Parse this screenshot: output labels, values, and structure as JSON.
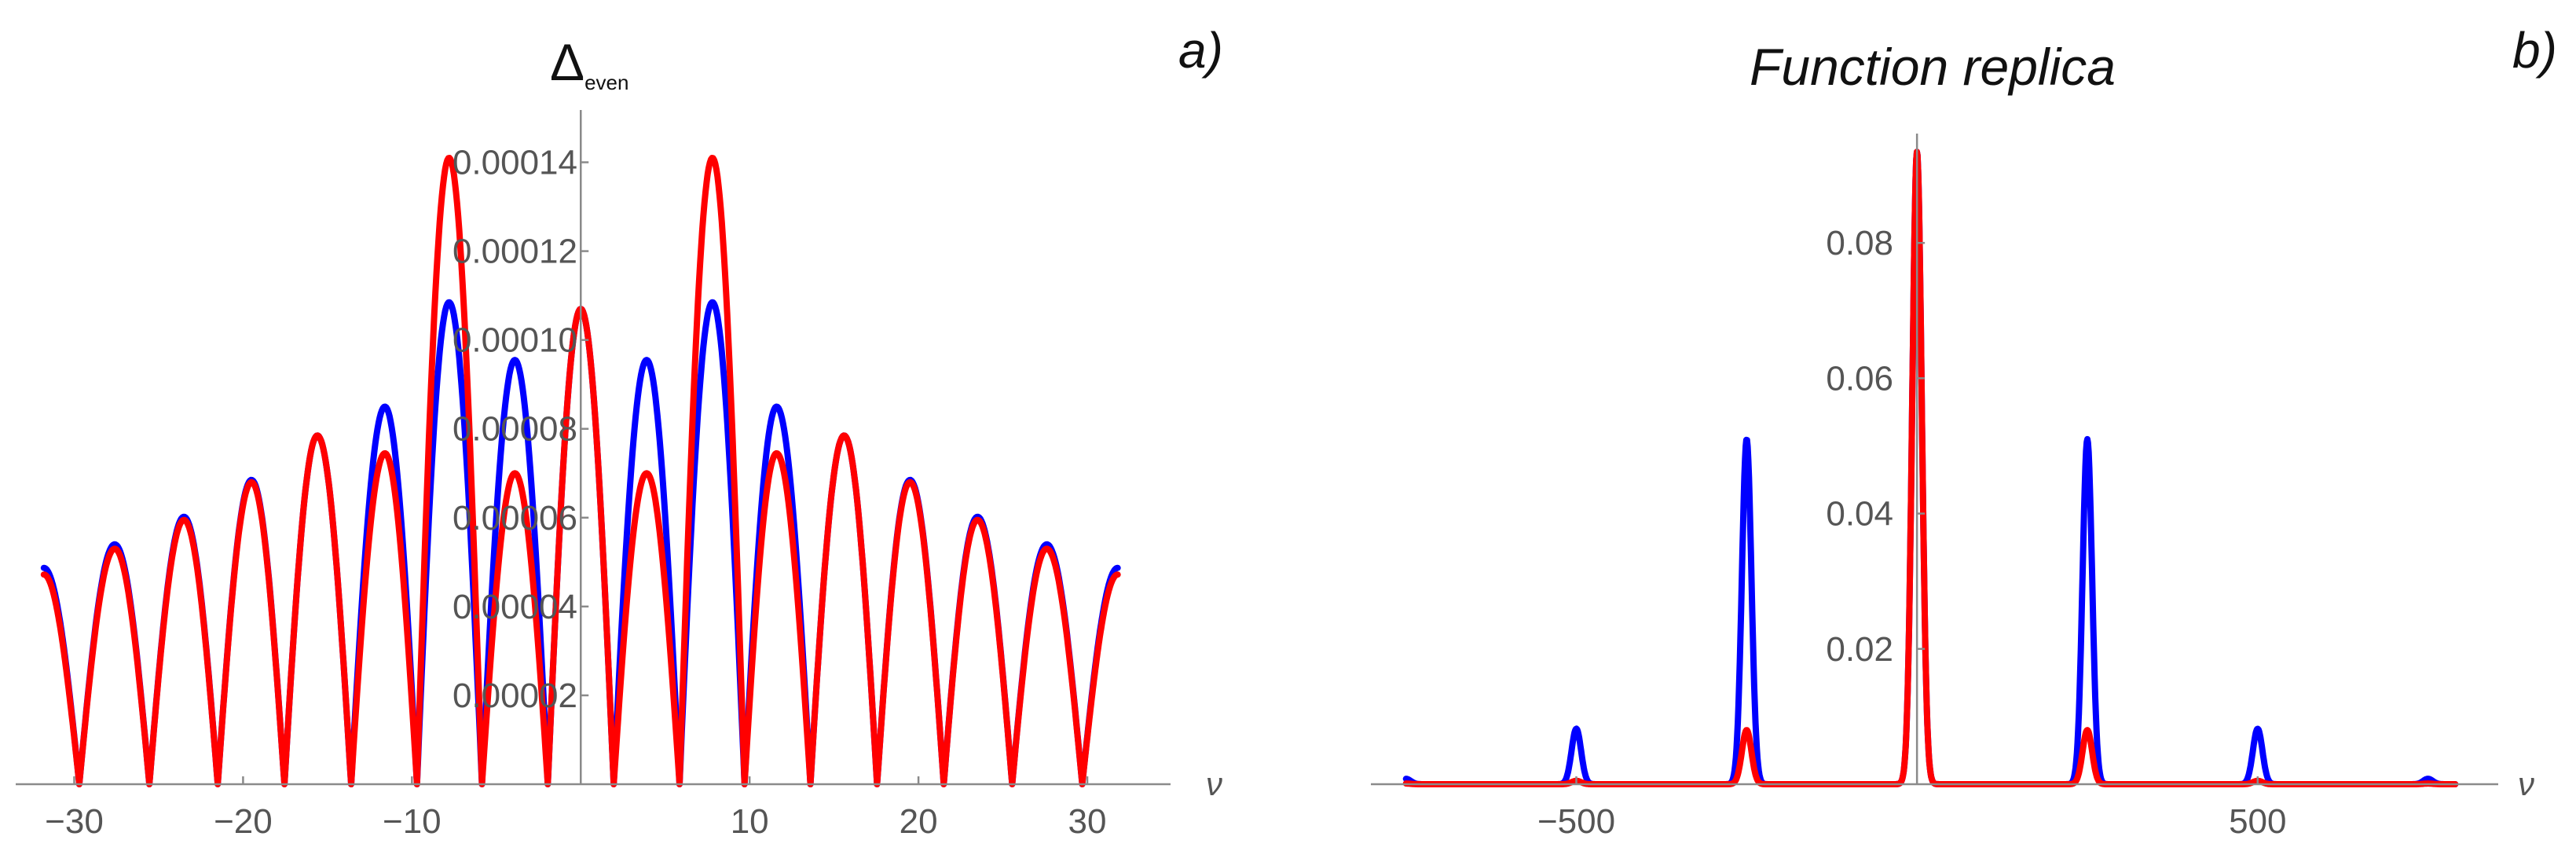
{
  "chart_data": [
    {
      "type": "line",
      "panel_label": "a)",
      "title": "Δeven",
      "title_main": "Δ",
      "title_sub": "even",
      "xlabel": "ν",
      "ylabel": "",
      "xlim": [
        -33,
        34
      ],
      "ylim": [
        0,
        0.00015
      ],
      "xticks": [
        -30,
        -20,
        -10,
        10,
        20,
        30
      ],
      "xtick_labels": [
        "−30",
        "−20",
        "−10",
        "10",
        "20",
        "30"
      ],
      "yticks": [
        2e-05,
        4e-05,
        6e-05,
        8e-05,
        0.0001,
        0.00012,
        0.00014
      ],
      "ytick_labels": [
        "0.00002",
        "0.00004",
        "0.00006",
        "0.00008",
        "0.00010",
        "0.00012",
        "0.00014"
      ],
      "grid": false,
      "series": [
        {
          "color": "#0000ff",
          "peaks": [
            {
              "x": -31.8,
              "y": 4.87e-05
            },
            {
              "x": -27.6,
              "y": 5.4e-05
            },
            {
              "x": -23.5,
              "y": 6.02e-05
            },
            {
              "x": -19.5,
              "y": 6.85e-05
            },
            {
              "x": -15.6,
              "y": 7.85e-05
            },
            {
              "x": -11.6,
              "y": 8.5e-05
            },
            {
              "x": -7.8,
              "y": 0.0001085
            },
            {
              "x": -3.9,
              "y": 9.55e-05
            },
            {
              "x": 0,
              "y": 0.000107
            },
            {
              "x": 3.9,
              "y": 9.55e-05
            },
            {
              "x": 7.8,
              "y": 0.0001085
            },
            {
              "x": 11.6,
              "y": 8.5e-05
            },
            {
              "x": 15.6,
              "y": 7.85e-05
            },
            {
              "x": 19.5,
              "y": 6.85e-05
            },
            {
              "x": 23.5,
              "y": 6.02e-05
            },
            {
              "x": 27.6,
              "y": 5.4e-05
            },
            {
              "x": 31.8,
              "y": 4.87e-05
            }
          ]
        },
        {
          "color": "#ff0000",
          "peaks": [
            {
              "x": -31.8,
              "y": 4.72e-05
            },
            {
              "x": -27.6,
              "y": 5.3e-05
            },
            {
              "x": -23.5,
              "y": 5.95e-05
            },
            {
              "x": -19.5,
              "y": 6.8e-05
            },
            {
              "x": -15.6,
              "y": 7.85e-05
            },
            {
              "x": -11.6,
              "y": 7.45e-05
            },
            {
              "x": -7.8,
              "y": 0.000141
            },
            {
              "x": -3.9,
              "y": 7e-05
            },
            {
              "x": 0,
              "y": 0.000107
            },
            {
              "x": 3.9,
              "y": 7e-05
            },
            {
              "x": 7.8,
              "y": 0.000141
            },
            {
              "x": 11.6,
              "y": 7.45e-05
            },
            {
              "x": 15.6,
              "y": 7.85e-05
            },
            {
              "x": 19.5,
              "y": 6.8e-05
            },
            {
              "x": 23.5,
              "y": 5.95e-05
            },
            {
              "x": 27.6,
              "y": 5.3e-05
            },
            {
              "x": 31.8,
              "y": 4.72e-05
            }
          ]
        }
      ]
    },
    {
      "type": "line",
      "panel_label": "b)",
      "title": "Function replica",
      "xlabel": "ν",
      "ylabel": "",
      "xlim": [
        -790,
        830
      ],
      "ylim": [
        0,
        0.095
      ],
      "xticks": [
        -500,
        500
      ],
      "xtick_labels": [
        "−500",
        "500"
      ],
      "yticks": [
        0.02,
        0.04,
        0.06,
        0.08
      ],
      "ytick_labels": [
        "0.02",
        "0.04",
        "0.06",
        "0.08"
      ],
      "grid": false,
      "series": [
        {
          "color": "#0000ff",
          "peaks": [
            {
              "x": -750,
              "y": 0.0008
            },
            {
              "x": -500,
              "y": 0.0082
            },
            {
              "x": -250,
              "y": 0.051
            },
            {
              "x": 0,
              "y": 0.0935
            },
            {
              "x": 250,
              "y": 0.051
            },
            {
              "x": 500,
              "y": 0.0082
            },
            {
              "x": 750,
              "y": 0.0008
            }
          ]
        },
        {
          "color": "#ff0000",
          "peaks": [
            {
              "x": -750,
              "y": 0.0001
            },
            {
              "x": -500,
              "y": 0.0005
            },
            {
              "x": -250,
              "y": 0.008
            },
            {
              "x": 0,
              "y": 0.0935
            },
            {
              "x": 250,
              "y": 0.008
            },
            {
              "x": 500,
              "y": 0.0005
            },
            {
              "x": 750,
              "y": 0.0001
            }
          ]
        }
      ]
    }
  ]
}
